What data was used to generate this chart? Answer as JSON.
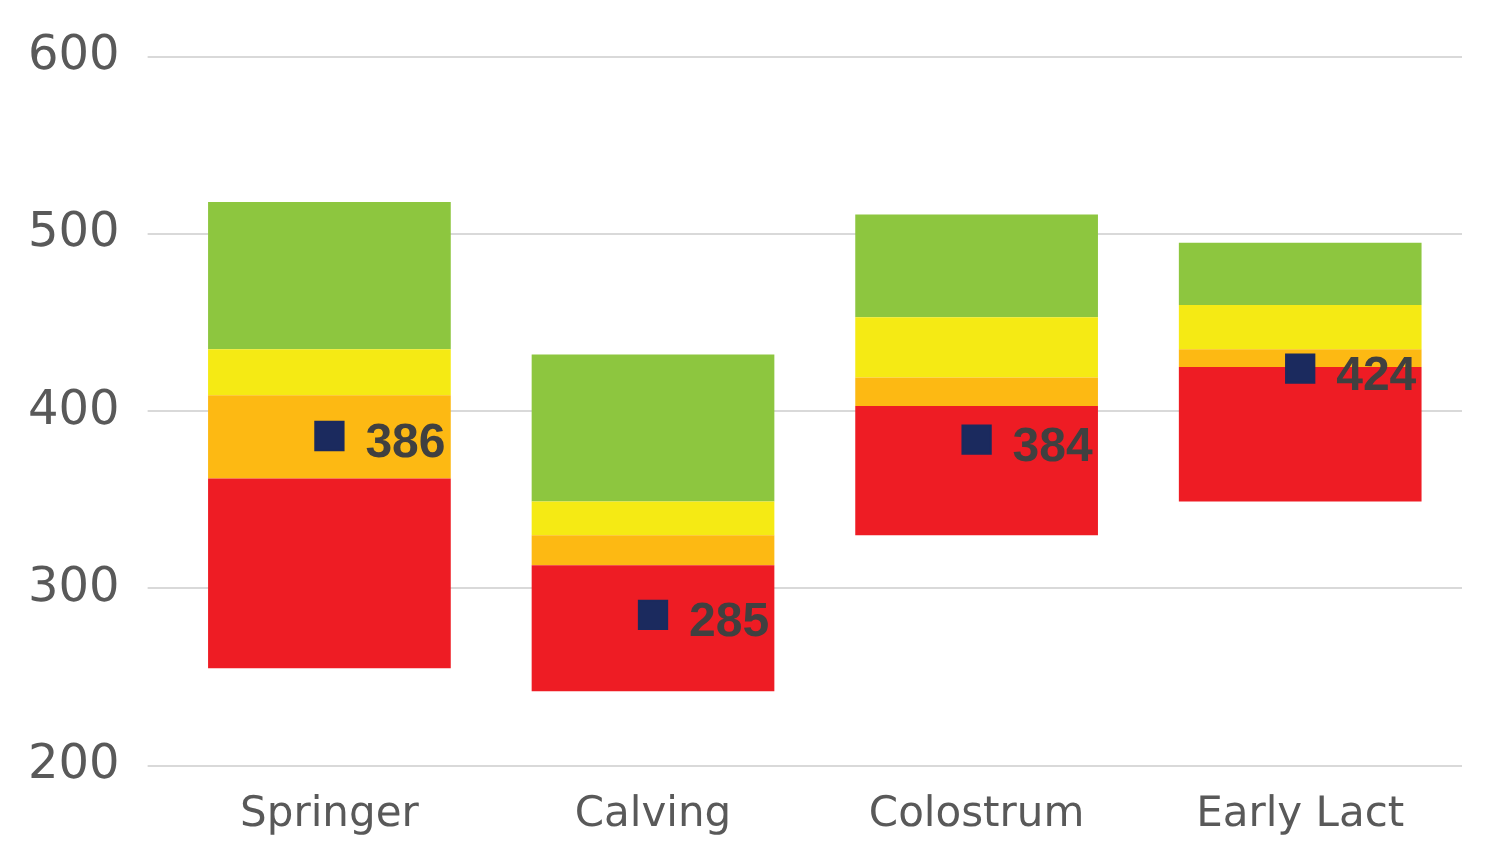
{
  "chart_data": {
    "type": "bar",
    "categories": [
      "Springer",
      "Calving",
      "Colostrum",
      "Early Lact"
    ],
    "series": [
      {
        "color": "#ee1c24",
        "base": [
          255,
          242,
          330,
          349
        ],
        "values": [
          107,
          71,
          73,
          76
        ]
      },
      {
        "color": "#fdb913",
        "base": [
          362,
          313,
          403,
          425
        ],
        "values": [
          47,
          17,
          16,
          10
        ]
      },
      {
        "color": "#f5ea14",
        "base": [
          409,
          330,
          419,
          435
        ],
        "values": [
          26,
          19,
          34,
          25
        ]
      },
      {
        "color": "#8dc63f",
        "base": [
          435,
          349,
          453,
          460
        ],
        "values": [
          83,
          83,
          58,
          35
        ]
      },
      {
        "type": "scatter",
        "x": [
          "Springer",
          "Calving",
          "Colostrum",
          "Early Lact"
        ],
        "color": "#1b2a5e",
        "marker": "square",
        "data_labels": true,
        "values": [
          386,
          285,
          384,
          424
        ]
      }
    ],
    "ylim": [
      200,
      600
    ],
    "yticks": [
      200,
      300,
      400,
      500,
      600
    ],
    "grid": "y",
    "legend": false
  }
}
